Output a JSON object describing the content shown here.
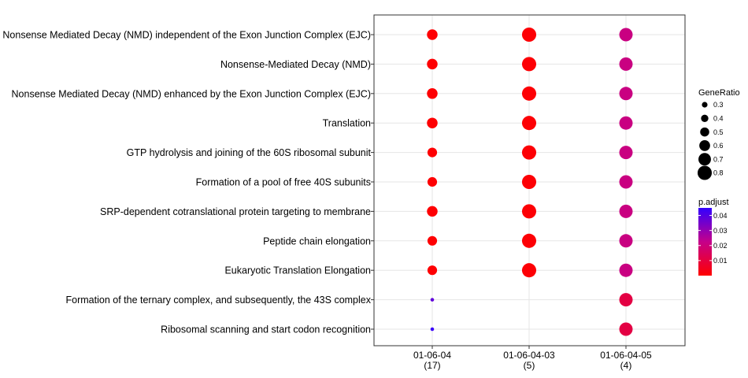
{
  "chart_data": {
    "type": "scatter",
    "subtype": "dot-plot",
    "grid": true,
    "legend_placement": "right",
    "categories_y": [
      "Nonsense Mediated Decay (NMD) independent of the Exon Junction Complex (EJC)",
      "Nonsense-Mediated Decay (NMD)",
      "Nonsense Mediated Decay (NMD) enhanced by the Exon Junction Complex (EJC)",
      "Translation",
      "GTP hydrolysis and joining of the 60S ribosomal subunit",
      "Formation of a pool of free 40S subunits",
      "SRP-dependent cotranslational protein targeting to membrane",
      "Peptide chain elongation",
      "Eukaryotic Translation Elongation",
      "Formation of the ternary complex, and subsequently, the 43S complex",
      "Ribosomal scanning and start codon recognition"
    ],
    "categories_x": [
      {
        "line1": "01-06-04",
        "line2": "(17)"
      },
      {
        "line1": "01-06-04-03",
        "line2": "(5)"
      },
      {
        "line1": "01-06-04-05",
        "line2": "(4)"
      }
    ],
    "size_legend": {
      "title": "GeneRatio",
      "values": [
        "0.3",
        "0.4",
        "0.5",
        "0.6",
        "0.7",
        "0.8"
      ]
    },
    "color_legend": {
      "title": "p.adjust",
      "ticks": [
        "0.04",
        "0.03",
        "0.02",
        "0.01"
      ],
      "range": [
        0.0,
        0.045
      ],
      "low_color": "#ff0000",
      "mid_color": "#c5008a",
      "high_color": "#3300ff"
    },
    "points": [
      {
        "x": 0,
        "y": 0,
        "gene_ratio": 0.59,
        "p_adjust": 0.0005
      },
      {
        "x": 0,
        "y": 1,
        "gene_ratio": 0.59,
        "p_adjust": 0.0005
      },
      {
        "x": 0,
        "y": 2,
        "gene_ratio": 0.59,
        "p_adjust": 0.0005
      },
      {
        "x": 0,
        "y": 3,
        "gene_ratio": 0.59,
        "p_adjust": 0.0005
      },
      {
        "x": 0,
        "y": 4,
        "gene_ratio": 0.53,
        "p_adjust": 0.0005
      },
      {
        "x": 0,
        "y": 5,
        "gene_ratio": 0.53,
        "p_adjust": 0.0005
      },
      {
        "x": 0,
        "y": 6,
        "gene_ratio": 0.59,
        "p_adjust": 0.0005
      },
      {
        "x": 0,
        "y": 7,
        "gene_ratio": 0.53,
        "p_adjust": 0.0005
      },
      {
        "x": 0,
        "y": 8,
        "gene_ratio": 0.53,
        "p_adjust": 0.0005
      },
      {
        "x": 0,
        "y": 9,
        "gene_ratio": 0.18,
        "p_adjust": 0.038
      },
      {
        "x": 0,
        "y": 10,
        "gene_ratio": 0.18,
        "p_adjust": 0.044
      },
      {
        "x": 1,
        "y": 0,
        "gene_ratio": 0.8,
        "p_adjust": 0.0008
      },
      {
        "x": 1,
        "y": 1,
        "gene_ratio": 0.8,
        "p_adjust": 0.0008
      },
      {
        "x": 1,
        "y": 2,
        "gene_ratio": 0.8,
        "p_adjust": 0.0008
      },
      {
        "x": 1,
        "y": 3,
        "gene_ratio": 0.8,
        "p_adjust": 0.0008
      },
      {
        "x": 1,
        "y": 4,
        "gene_ratio": 0.8,
        "p_adjust": 0.0008
      },
      {
        "x": 1,
        "y": 5,
        "gene_ratio": 0.8,
        "p_adjust": 0.0008
      },
      {
        "x": 1,
        "y": 6,
        "gene_ratio": 0.8,
        "p_adjust": 0.0008
      },
      {
        "x": 1,
        "y": 7,
        "gene_ratio": 0.8,
        "p_adjust": 0.0008
      },
      {
        "x": 1,
        "y": 8,
        "gene_ratio": 0.8,
        "p_adjust": 0.0008
      },
      {
        "x": 2,
        "y": 0,
        "gene_ratio": 0.75,
        "p_adjust": 0.021
      },
      {
        "x": 2,
        "y": 1,
        "gene_ratio": 0.75,
        "p_adjust": 0.021
      },
      {
        "x": 2,
        "y": 2,
        "gene_ratio": 0.75,
        "p_adjust": 0.021
      },
      {
        "x": 2,
        "y": 3,
        "gene_ratio": 0.75,
        "p_adjust": 0.021
      },
      {
        "x": 2,
        "y": 4,
        "gene_ratio": 0.75,
        "p_adjust": 0.021
      },
      {
        "x": 2,
        "y": 5,
        "gene_ratio": 0.75,
        "p_adjust": 0.021
      },
      {
        "x": 2,
        "y": 6,
        "gene_ratio": 0.75,
        "p_adjust": 0.021
      },
      {
        "x": 2,
        "y": 7,
        "gene_ratio": 0.75,
        "p_adjust": 0.021
      },
      {
        "x": 2,
        "y": 8,
        "gene_ratio": 0.75,
        "p_adjust": 0.021
      },
      {
        "x": 2,
        "y": 9,
        "gene_ratio": 0.75,
        "p_adjust": 0.011
      },
      {
        "x": 2,
        "y": 10,
        "gene_ratio": 0.75,
        "p_adjust": 0.011
      }
    ]
  }
}
